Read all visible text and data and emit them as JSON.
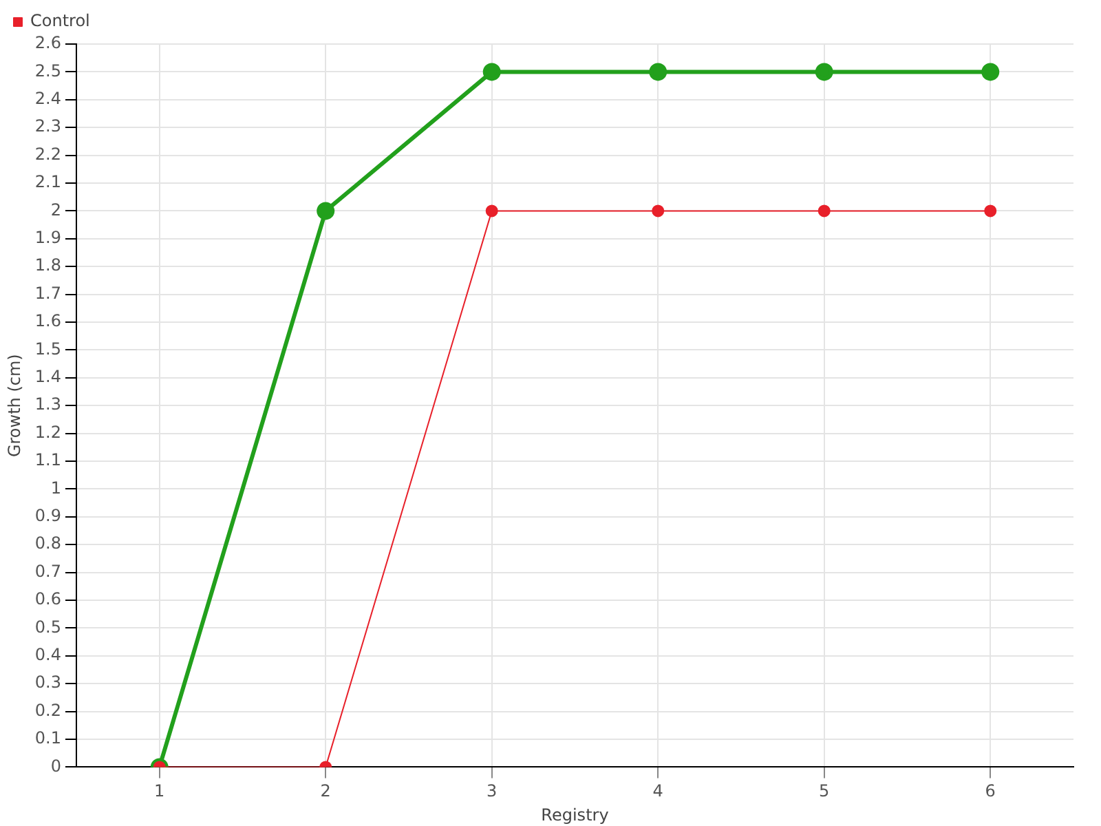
{
  "chart_data": {
    "type": "line",
    "xlabel": "Registry",
    "ylabel": "Growth (cm)",
    "categories": [
      "1",
      "2",
      "3",
      "4",
      "5",
      "6"
    ],
    "series": [
      {
        "color": "#22a01c",
        "values": [
          0,
          2,
          2.5,
          2.5,
          2.5,
          2.5
        ]
      },
      {
        "name": "Control",
        "color": "#e8202a",
        "values": [
          0,
          0,
          2,
          2,
          2,
          2
        ]
      }
    ],
    "ylim": [
      0,
      2.6
    ],
    "yticks": [
      0,
      0.1,
      0.2,
      0.3,
      0.4,
      0.5,
      0.6,
      0.7,
      0.8,
      0.9,
      1,
      1.1,
      1.2,
      1.3,
      1.4,
      1.5,
      1.6,
      1.7,
      1.8,
      1.9,
      2,
      2.1,
      2.2,
      2.3,
      2.4,
      2.5,
      2.6
    ],
    "grid": true,
    "legend": "top left",
    "marker": "circle",
    "line_style": "solid"
  }
}
